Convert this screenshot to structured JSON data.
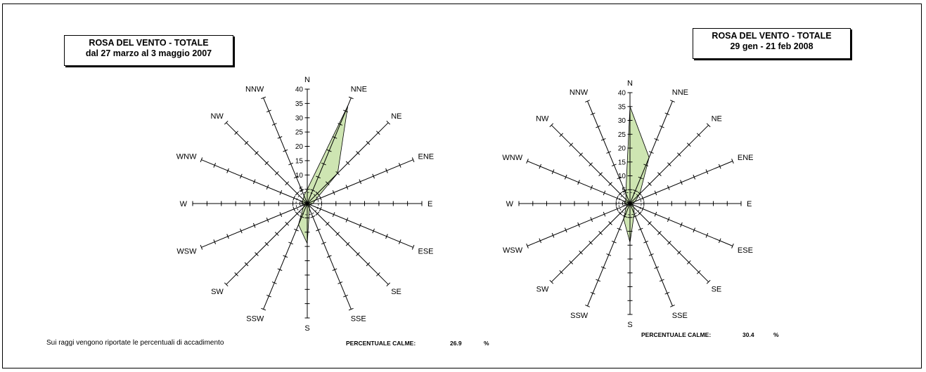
{
  "footnote": "Sui raggi vengono riportate le percentuali di accadimento",
  "chart_data": [
    {
      "type": "radar",
      "title_line1": "ROSA DEL VENTO - TOTALE",
      "title_line2": "dal 27 marzo al 3 maggio 2007",
      "directions": [
        "N",
        "NNE",
        "NE",
        "ENE",
        "E",
        "ESE",
        "SE",
        "SSE",
        "S",
        "SSW",
        "SW",
        "WSW",
        "W",
        "WNW",
        "NW",
        "NNW"
      ],
      "values": [
        5,
        37,
        15,
        3,
        2,
        1,
        1,
        2,
        14,
        8,
        2,
        1,
        2,
        2,
        2,
        3
      ],
      "rlim": [
        0,
        40
      ],
      "radial_ticks": [
        0,
        5,
        10,
        15,
        20,
        25,
        30,
        35,
        40
      ],
      "calm_label": "PERCENTUALE CALME:",
      "calm_value": "26.9",
      "calm_unit": "%",
      "fill_color": "#c5e0a5",
      "stroke_color": "#000000"
    },
    {
      "type": "radar",
      "title_line1": "ROSA DEL VENTO - TOTALE",
      "title_line2": "29 gen - 21 feb 2008",
      "directions": [
        "N",
        "NNE",
        "NE",
        "ENE",
        "E",
        "ESE",
        "SE",
        "SSE",
        "S",
        "SSW",
        "SW",
        "WSW",
        "W",
        "WNW",
        "NW",
        "NNW"
      ],
      "values": [
        35,
        18,
        5,
        2,
        1,
        1,
        2,
        4,
        14,
        6,
        2,
        1,
        2,
        2,
        2,
        4
      ],
      "rlim": [
        0,
        40
      ],
      "radial_ticks": [
        0,
        5,
        10,
        15,
        20,
        25,
        30,
        35,
        40
      ],
      "calm_label": "PERCENTUALE CALME:",
      "calm_value": "30.4",
      "calm_unit": "%",
      "fill_color": "#c5e0a5",
      "stroke_color": "#000000"
    }
  ]
}
